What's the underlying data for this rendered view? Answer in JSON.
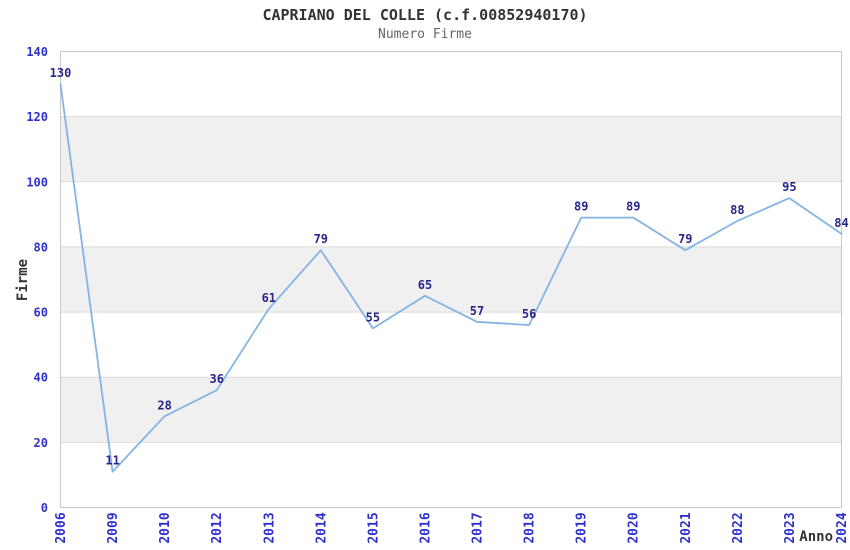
{
  "header": {
    "title": "CAPRIANO DEL COLLE (c.f.00852940170)",
    "subtitle": "Numero Firme"
  },
  "chart_data": {
    "type": "line",
    "title": "CAPRIANO DEL COLLE (c.f.00852940170)",
    "subtitle": "Numero Firme",
    "categories": [
      "2006",
      "2009",
      "2010",
      "2012",
      "2013",
      "2014",
      "2015",
      "2016",
      "2017",
      "2018",
      "2019",
      "2020",
      "2021",
      "2022",
      "2023",
      "2024"
    ],
    "values": [
      130,
      11,
      28,
      36,
      61,
      79,
      55,
      65,
      57,
      56,
      89,
      89,
      79,
      88,
      95,
      84
    ],
    "xlabel": "Anno",
    "ylabel": "Firme",
    "ylim": [
      0,
      140
    ],
    "ytick_step": 20,
    "yticks": [
      0,
      20,
      40,
      60,
      80,
      100,
      120,
      140
    ],
    "grid": "horizontal-bands",
    "legend": "none",
    "markers": "none",
    "data_labels": "above-points",
    "colors": {
      "line": "#84B4E6",
      "data_label": "#28288C",
      "tick_label": "#3030CC",
      "band": "#F0F0F0",
      "gridline": "#DCDCDC",
      "plot_border": "#C8C8C8",
      "title": "#333333",
      "subtitle": "#666666",
      "axis_title": "#333333",
      "background": "#FFFFFF"
    }
  }
}
